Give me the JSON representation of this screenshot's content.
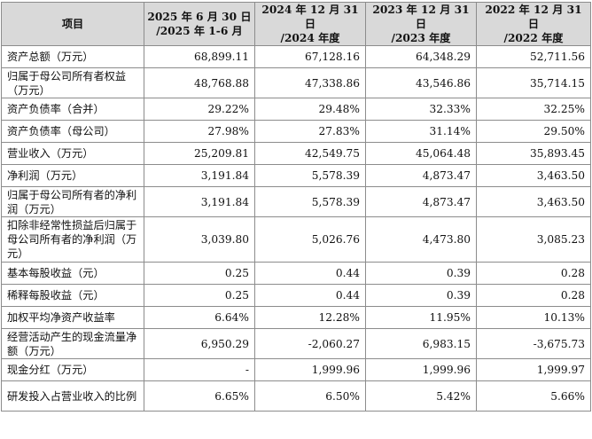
{
  "table": {
    "headers": [
      {
        "line1": "项目",
        "line2": ""
      },
      {
        "line1": "2025 年 6 月 30 日",
        "line2": "/2025 年 1-6 月"
      },
      {
        "line1": "2024 年 12 月 31 日",
        "line2": "/2024 年度"
      },
      {
        "line1": "2023 年 12 月 31 日",
        "line2": "/2023 年度"
      },
      {
        "line1": "2022 年 12 月 31 日",
        "line2": "/2022 年度"
      }
    ],
    "rows": [
      {
        "label": "资产总额（万元）",
        "values": [
          "68,899.11",
          "67,128.16",
          "64,348.29",
          "52,711.56"
        ]
      },
      {
        "label": "归属于母公司所有者权益（万元）",
        "values": [
          "48,768.88",
          "47,338.86",
          "43,546.86",
          "35,714.15"
        ]
      },
      {
        "label": "资产负债率（合并）",
        "values": [
          "29.22%",
          "29.48%",
          "32.33%",
          "32.25%"
        ]
      },
      {
        "label": "资产负债率（母公司）",
        "values": [
          "27.98%",
          "27.83%",
          "31.14%",
          "29.50%"
        ]
      },
      {
        "label": "营业收入（万元）",
        "values": [
          "25,209.81",
          "42,549.75",
          "45,064.48",
          "35,893.45"
        ]
      },
      {
        "label": "净利润（万元）",
        "values": [
          "3,191.84",
          "5,578.39",
          "4,873.47",
          "3,463.50"
        ]
      },
      {
        "label": "归属于母公司所有者的净利润（万元）",
        "values": [
          "3,191.84",
          "5,578.39",
          "4,873.47",
          "3,463.50"
        ]
      },
      {
        "label": "扣除非经常性损益后归属于母公司所有者的净利润（万元）",
        "values": [
          "3,039.80",
          "5,026.76",
          "4,473.80",
          "3,085.23"
        ]
      },
      {
        "label": "基本每股收益（元）",
        "values": [
          "0.25",
          "0.44",
          "0.39",
          "0.28"
        ]
      },
      {
        "label": "稀释每股收益（元）",
        "values": [
          "0.25",
          "0.44",
          "0.39",
          "0.28"
        ]
      },
      {
        "label": "加权平均净资产收益率",
        "values": [
          "6.64%",
          "12.28%",
          "11.95%",
          "10.13%"
        ]
      },
      {
        "label": "经营活动产生的现金流量净额（万元）",
        "values": [
          "6,950.29",
          "-2,060.27",
          "6,983.15",
          "-3,675.73"
        ]
      },
      {
        "label": "现金分红（万元）",
        "values": [
          "-",
          "1,999.96",
          "1,999.96",
          "1,999.97"
        ]
      },
      {
        "label": "研发投入占营业收入的比例",
        "values": [
          "6.65%",
          "6.50%",
          "5.42%",
          "5.66%"
        ]
      }
    ]
  }
}
